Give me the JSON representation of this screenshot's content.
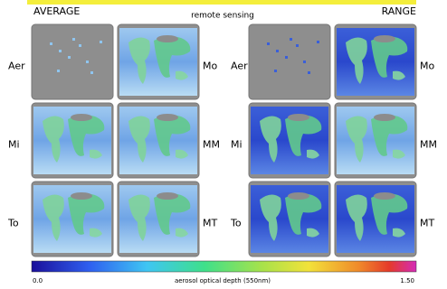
{
  "header": {
    "left": "AVERAGE",
    "center": "remote sensing",
    "right": "RANGE"
  },
  "panels": {
    "average": {
      "rows": [
        [
          "Aer",
          "Mo"
        ],
        [
          "Mi",
          "MM"
        ],
        [
          "To",
          "MT"
        ]
      ]
    },
    "range": {
      "rows": [
        [
          "Aer",
          "Mo"
        ],
        [
          "Mi",
          "MM"
        ],
        [
          "To",
          "MT"
        ]
      ]
    }
  },
  "colorbar": {
    "min": "0.0",
    "label": "aerosol optical depth (550nm)",
    "max": "1.50"
  }
}
